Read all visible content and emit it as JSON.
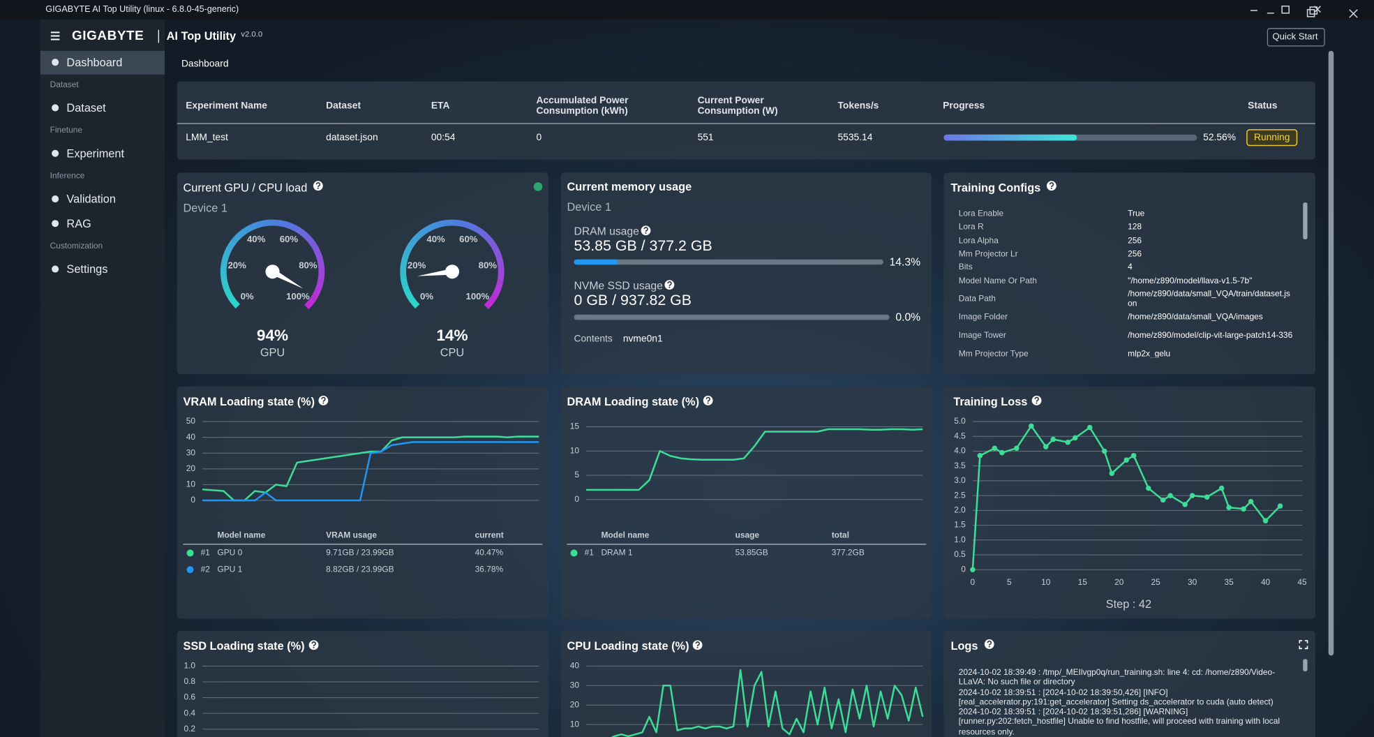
{
  "window": {
    "title": "GIGABYTE AI Top Utility (linux - 6.8.0-45-generic)"
  },
  "header": {
    "brand": "GIGABYTE",
    "app": "AI Top Utility",
    "version": "v2.0.0",
    "quick_start": "Quick Start"
  },
  "sidebar": {
    "groups": [
      {
        "items": [
          "Dashboard"
        ]
      },
      {
        "heading": "Dataset",
        "items": [
          "Dataset"
        ]
      },
      {
        "heading": "Finetune",
        "items": [
          "Experiment"
        ]
      },
      {
        "heading": "Inference",
        "items": [
          "Validation",
          "RAG"
        ]
      },
      {
        "heading": "Customization",
        "items": [
          "Settings"
        ]
      }
    ]
  },
  "breadcrumb": "Dashboard",
  "experiments": {
    "columns": [
      "Experiment Name",
      "Dataset",
      "ETA",
      "Accumulated Power Consumption (kWh)",
      "Current Power Consumption (W)",
      "Tokens/s",
      "Progress",
      "Status"
    ],
    "rows": [
      [
        "LMM_test",
        "dataset.json",
        "00:54",
        "0",
        "551",
        "5535.14",
        {
          "value": 52.56,
          "label": "52.56%"
        },
        "Running"
      ]
    ]
  },
  "load": {
    "title": "Current GPU / CPU load",
    "device": "Device 1",
    "gauge_ticks": [
      {
        "value": 0,
        "label": "0%"
      },
      {
        "value": 20,
        "label": "20%"
      },
      {
        "value": 40,
        "label": "40%"
      },
      {
        "value": 60,
        "label": "60%"
      },
      {
        "value": 80,
        "label": "80%"
      },
      {
        "value": 100,
        "label": "100%"
      }
    ],
    "gauges": [
      {
        "name": "GPU",
        "value": 94,
        "label": "94%"
      },
      {
        "name": "CPU",
        "value": 14,
        "label": "14%"
      }
    ]
  },
  "memory": {
    "title": "Current memory usage",
    "device": "Device 1",
    "dram": {
      "label": "DRAM usage",
      "text": "53.85 GB / 377.2 GB",
      "percent": {
        "value": 14.3,
        "label": "14.3%"
      }
    },
    "nvme": {
      "label": "NVMe SSD usage",
      "text": "0 GB / 937.82 GB",
      "percent": {
        "value": 0,
        "label": "0.0%"
      }
    },
    "contents_label": "Contents",
    "contents": "nvme0n1"
  },
  "configs": {
    "title": "Training Configs",
    "rows": [
      [
        "Lora Enable",
        "True"
      ],
      [
        "Lora R",
        "128"
      ],
      [
        "Lora Alpha",
        "256"
      ],
      [
        "Mm Projector Lr",
        "256"
      ],
      [
        "Bits",
        "4"
      ],
      [
        "Model Name Or Path",
        "\"/home/z890/model/llava-v1.5-7b\""
      ],
      [
        "Data Path",
        "/home/z890/data/small_VQA/train/dataset.json"
      ],
      [
        "Image Folder",
        "/home/z890/data/small_VQA/images"
      ],
      [
        "Image Tower",
        "/home/z890/model/clip-vit-large-patch14-336"
      ],
      [
        "Mm Projector Type",
        "mlp2x_gelu"
      ]
    ]
  },
  "logs": {
    "title": "Logs",
    "lines": [
      "2024-10-02 18:39:49 : /tmp/_MEIlvgp0q/run_training.sh: line 4: cd: /home/z890/Video-LLaVA: No such file or directory",
      "2024-10-02 18:39:51 : [2024-10-02 18:39:50,426] [INFO] [real_accelerator.py:191:get_accelerator] Setting ds_accelerator to cuda (auto detect)",
      "2024-10-02 18:39:51 : [2024-10-02 18:39:51,286] [WARNING] [runner.py:202:fetch_hostfile] Unable to find hostfile, will proceed with training with local resources only."
    ]
  },
  "chart_data": [
    {
      "type": "line",
      "title": "VRAM Loading state (%)",
      "categories": [
        null,
        null,
        null,
        null,
        null,
        null,
        null,
        null,
        null,
        null,
        null,
        null,
        null,
        null,
        null,
        null,
        null,
        null,
        null,
        null,
        null,
        null,
        null,
        null,
        null,
        null,
        null,
        null,
        null,
        null,
        null,
        null,
        null
      ],
      "series": [
        {
          "name": "GPU 0",
          "color": "#3ddc97",
          "values": [
            7,
            6.5,
            6,
            0,
            0,
            6,
            5,
            10,
            9,
            24,
            25,
            26,
            27,
            28,
            29,
            30,
            31,
            31,
            38,
            40,
            40,
            40,
            40,
            40,
            40,
            40.5,
            40.5,
            40.5,
            40.5,
            40,
            40.5,
            40.5,
            40.5
          ]
        },
        {
          "name": "GPU 1",
          "color": "#2196f3",
          "values": [
            0,
            0,
            0,
            0,
            0,
            0,
            5,
            0,
            0,
            0,
            0,
            0,
            0,
            0,
            0,
            0,
            30,
            31,
            35,
            36,
            37,
            37,
            37,
            37,
            37,
            37,
            37,
            37,
            37,
            37,
            37,
            37,
            37
          ]
        }
      ],
      "ylim": [
        0,
        50
      ],
      "yticks": [
        0,
        10,
        20,
        30,
        40,
        50
      ],
      "grid": true,
      "table": {
        "headers": [
          "Model name",
          "VRAM usage",
          "current"
        ],
        "rows": [
          {
            "rank": "#1",
            "usage": "9.71GB / 23.99GB",
            "current": "40.47%"
          },
          {
            "rank": "#2",
            "usage": "8.82GB / 23.99GB",
            "current": "36.78%"
          }
        ]
      }
    },
    {
      "type": "line",
      "title": "DRAM Loading state (%)",
      "categories": [
        null,
        null,
        null,
        null,
        null,
        null,
        null,
        null,
        null,
        null,
        null,
        null,
        null,
        null,
        null,
        null,
        null,
        null,
        null,
        null,
        null,
        null,
        null,
        null,
        null,
        null,
        null,
        null,
        null,
        null,
        null,
        null,
        null
      ],
      "series": [
        {
          "name": "DRAM 1",
          "color": "#3ddc97",
          "values": [
            2,
            2,
            2,
            2,
            2,
            2,
            4,
            10,
            9,
            8.5,
            8.3,
            8.2,
            8.2,
            8.2,
            8.2,
            8.5,
            11,
            14,
            14,
            14,
            14,
            14,
            14,
            14.5,
            14.5,
            14.5,
            14.5,
            14.4,
            14.4,
            14.5,
            14.5,
            14.4,
            14.5
          ]
        }
      ],
      "ylim": [
        0,
        15
      ],
      "yticks": [
        0,
        5,
        10,
        15
      ],
      "grid": true,
      "table": {
        "headers": [
          "Model name",
          "usage",
          "total"
        ],
        "rows": [
          {
            "rank": "#1",
            "usage": "53.85GB",
            "total": "377.2GB"
          }
        ]
      }
    },
    {
      "type": "line",
      "title": "Training Loss",
      "color": "#3ddc97",
      "markers": true,
      "x": [
        0,
        1,
        3,
        4,
        6,
        8,
        10,
        11,
        13,
        14,
        16,
        18,
        19,
        21,
        22,
        24,
        26,
        27,
        29,
        30,
        32,
        34,
        35,
        37,
        38,
        40,
        42
      ],
      "values": [
        0,
        3.85,
        4.1,
        3.95,
        4.1,
        4.85,
        4.15,
        4.4,
        4.3,
        4.45,
        4.8,
        4.0,
        3.25,
        3.7,
        3.85,
        2.75,
        2.35,
        2.5,
        2.2,
        2.5,
        2.45,
        2.75,
        2.1,
        2.05,
        2.3,
        1.65,
        2.15
      ],
      "xlim": [
        0,
        45
      ],
      "xticks": [
        0,
        5,
        10,
        15,
        20,
        25,
        30,
        35,
        40,
        45
      ],
      "ylim": [
        0,
        5
      ],
      "yticks": [
        0,
        0.5,
        {
          "value": 1,
          "label": "1.0"
        },
        1.5,
        {
          "value": 2,
          "label": "2.0"
        },
        2.5,
        {
          "value": 3,
          "label": "3.0"
        },
        3.5,
        {
          "value": 4,
          "label": "4.0"
        },
        4.5,
        {
          "value": 5,
          "label": "5.0"
        }
      ],
      "grid": true,
      "footer": "Step : 42"
    },
    {
      "type": "line",
      "title": "SSD Loading state (%)",
      "series": [],
      "ylim": [
        0,
        1
      ],
      "yticks": [
        {
          "value": 1,
          "label": "1.0"
        },
        0.8,
        0.6,
        0.4,
        0.2
      ],
      "grid": true
    },
    {
      "type": "line",
      "title": "CPU Loading state (%)",
      "categories": [
        null,
        null,
        null,
        null,
        null,
        null,
        null,
        null,
        null,
        null,
        null,
        null,
        null,
        null,
        null,
        null,
        null,
        null,
        null,
        null,
        null,
        null,
        null,
        null,
        null,
        null,
        null,
        null,
        null,
        null,
        null,
        null,
        null,
        null,
        null,
        null,
        null,
        null,
        null,
        null,
        null,
        null,
        null,
        null,
        null,
        null,
        null,
        null,
        null
      ],
      "series": [
        {
          "name": "CPU",
          "color": "#3ddc97",
          "values": [
            3,
            2,
            3,
            2,
            4,
            5,
            4,
            5,
            6,
            14,
            6,
            30,
            30,
            7,
            8,
            8,
            9,
            8,
            9,
            9,
            8,
            9,
            38,
            9,
            30,
            37,
            9,
            27,
            8,
            5,
            13,
            6,
            27,
            10,
            29,
            8,
            23,
            6,
            28,
            13,
            30,
            9,
            27,
            13,
            30,
            25,
            12,
            29,
            14
          ]
        }
      ],
      "ylim": [
        0,
        40
      ],
      "yticks": [
        10,
        20,
        30,
        40
      ],
      "grid": true
    }
  ]
}
